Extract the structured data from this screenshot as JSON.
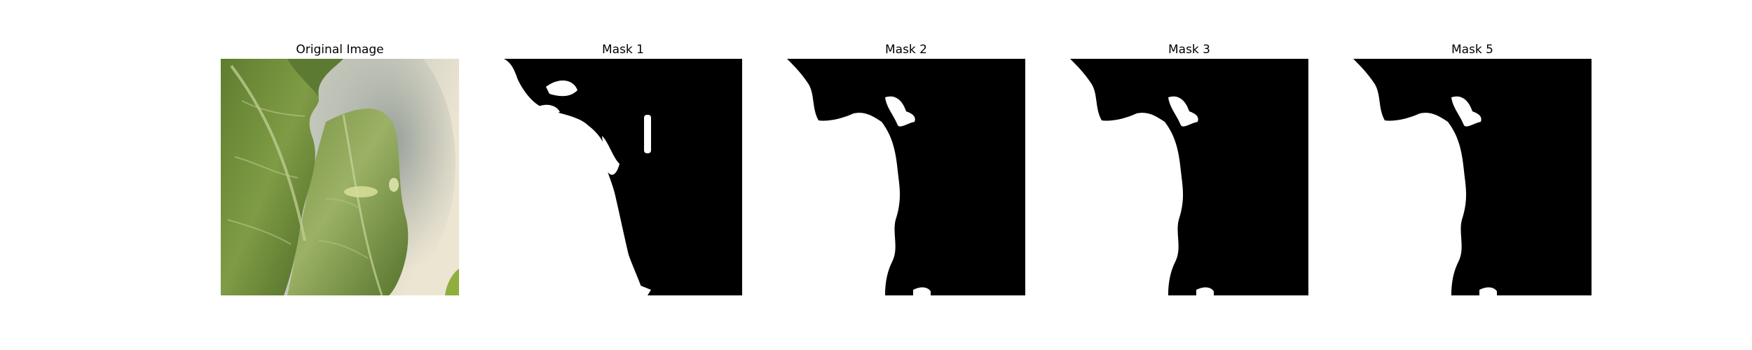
{
  "figure": {
    "panels": [
      {
        "title": "Original Image",
        "kind": "photo"
      },
      {
        "title": "Mask 1",
        "kind": "mask"
      },
      {
        "title": "Mask 2",
        "kind": "mask"
      },
      {
        "title": "Mask 3",
        "kind": "mask"
      },
      {
        "title": "Mask 5",
        "kind": "mask"
      }
    ]
  },
  "colors": {
    "background": "#ffffff",
    "mask_foreground": "#ffffff",
    "mask_background": "#000000",
    "leaf_dark": "#4f6e2c",
    "leaf_mid": "#6f8f3c",
    "leaf_light": "#a9bb6a",
    "backdrop_shadow": "#9aa39a",
    "backdrop_light": "#ece5d2"
  }
}
